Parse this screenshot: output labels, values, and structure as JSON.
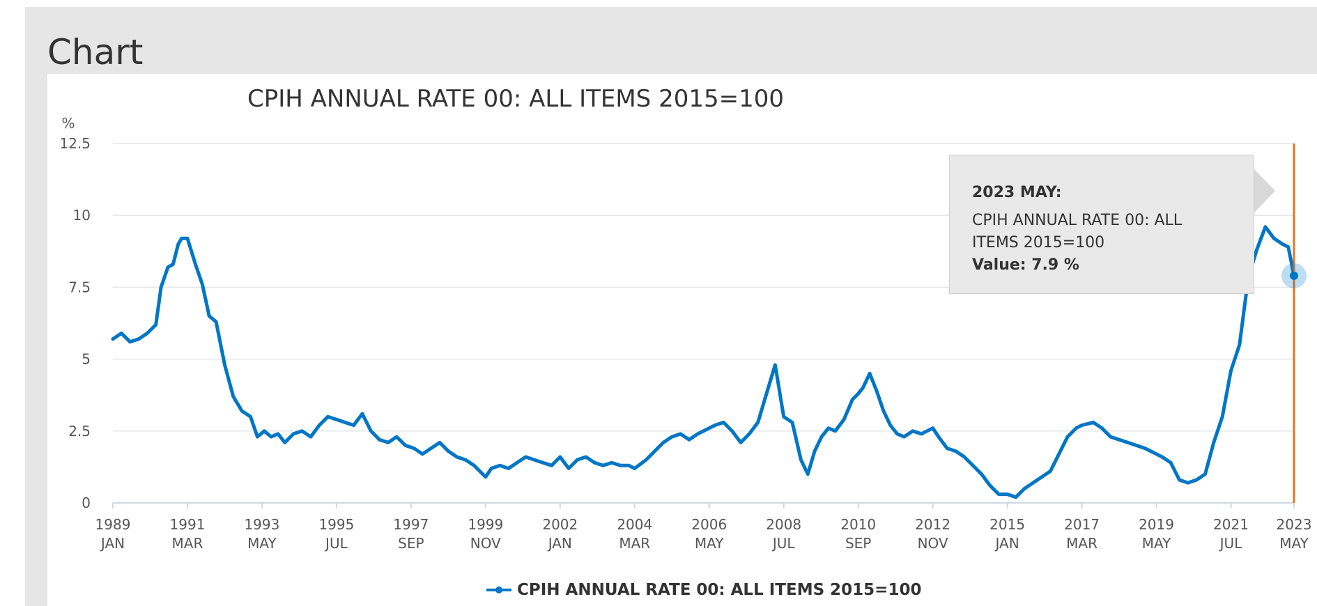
{
  "page": {
    "heading": "Chart"
  },
  "tooltip": {
    "date": "2023 MAY:",
    "series": "CPIH ANNUAL RATE 00: ALL ITEMS 2015=100",
    "value": "Value: 7.9 %"
  },
  "legend": {
    "label": "CPIH ANNUAL RATE 00: ALL ITEMS 2015=100"
  },
  "colors": {
    "series": "#0076c6",
    "highlight": "#e8731c",
    "grid": "#e3e6ea"
  },
  "chart_data": {
    "type": "line",
    "title": "CPIH ANNUAL RATE 00: ALL ITEMS 2015=100",
    "ylabel": "%",
    "xlabel": "",
    "ylim": [
      0,
      12.5
    ],
    "yticks": [
      "0",
      "2.5",
      "5",
      "7.5",
      "10",
      "12.5"
    ],
    "xlim": [
      1989.0,
      2023.333
    ],
    "xticks": [
      {
        "x": 1989.0,
        "year": "1989",
        "month": "JAN"
      },
      {
        "x": 1991.167,
        "year": "1991",
        "month": "MAR"
      },
      {
        "x": 1993.333,
        "year": "1993",
        "month": "MAY"
      },
      {
        "x": 1995.5,
        "year": "1995",
        "month": "JUL"
      },
      {
        "x": 1997.667,
        "year": "1997",
        "month": "SEP"
      },
      {
        "x": 1999.833,
        "year": "1999",
        "month": "NOV"
      },
      {
        "x": 2002.0,
        "year": "2002",
        "month": "JAN"
      },
      {
        "x": 2004.167,
        "year": "2004",
        "month": "MAR"
      },
      {
        "x": 2006.333,
        "year": "2006",
        "month": "MAY"
      },
      {
        "x": 2008.5,
        "year": "2008",
        "month": "JUL"
      },
      {
        "x": 2010.667,
        "year": "2010",
        "month": "SEP"
      },
      {
        "x": 2012.833,
        "year": "2012",
        "month": "NOV"
      },
      {
        "x": 2015.0,
        "year": "2015",
        "month": "JAN"
      },
      {
        "x": 2017.167,
        "year": "2017",
        "month": "MAR"
      },
      {
        "x": 2019.333,
        "year": "2019",
        "month": "MAY"
      },
      {
        "x": 2021.5,
        "year": "2021",
        "month": "JUL"
      },
      {
        "x": 2023.333,
        "year": "2023",
        "month": "MAY"
      }
    ],
    "grid": true,
    "legend_position": "bottom-center",
    "highlight_x": 2023.333,
    "series": [
      {
        "name": "CPIH ANNUAL RATE 00: ALL ITEMS 2015=100",
        "x": [
          1989.0,
          1989.25,
          1989.5,
          1989.75,
          1990.0,
          1990.25,
          1990.4,
          1990.6,
          1990.75,
          1990.9,
          1991.0,
          1991.167,
          1991.4,
          1991.6,
          1991.8,
          1992.0,
          1992.25,
          1992.5,
          1992.75,
          1993.0,
          1993.2,
          1993.4,
          1993.6,
          1993.8,
          1994.0,
          1994.25,
          1994.5,
          1994.75,
          1995.0,
          1995.25,
          1995.5,
          1995.75,
          1996.0,
          1996.25,
          1996.5,
          1996.75,
          1997.0,
          1997.25,
          1997.5,
          1997.75,
          1998.0,
          1998.25,
          1998.5,
          1998.75,
          1999.0,
          1999.25,
          1999.5,
          1999.833,
          2000.0,
          2000.25,
          2000.5,
          2000.75,
          2001.0,
          2001.25,
          2001.5,
          2001.75,
          2002.0,
          2002.25,
          2002.5,
          2002.75,
          2003.0,
          2003.25,
          2003.5,
          2003.75,
          2004.0,
          2004.167,
          2004.5,
          2004.75,
          2005.0,
          2005.25,
          2005.5,
          2005.75,
          2006.0,
          2006.333,
          2006.5,
          2006.75,
          2007.0,
          2007.25,
          2007.5,
          2007.75,
          2008.0,
          2008.25,
          2008.5,
          2008.75,
          2009.0,
          2009.2,
          2009.4,
          2009.6,
          2009.8,
          2010.0,
          2010.25,
          2010.5,
          2010.667,
          2010.8,
          2011.0,
          2011.2,
          2011.4,
          2011.6,
          2011.8,
          2012.0,
          2012.25,
          2012.5,
          2012.833,
          2013.0,
          2013.25,
          2013.5,
          2013.75,
          2014.0,
          2014.25,
          2014.5,
          2014.75,
          2015.0,
          2015.25,
          2015.5,
          2015.75,
          2016.0,
          2016.25,
          2016.5,
          2016.75,
          2017.0,
          2017.167,
          2017.5,
          2017.75,
          2018.0,
          2018.25,
          2018.5,
          2018.75,
          2019.0,
          2019.333,
          2019.5,
          2019.75,
          2020.0,
          2020.25,
          2020.5,
          2020.75,
          2021.0,
          2021.25,
          2021.5,
          2021.75,
          2022.0,
          2022.25,
          2022.5,
          2022.75,
          2023.0,
          2023.167,
          2023.333
        ],
        "values": [
          5.7,
          5.9,
          5.6,
          5.7,
          5.9,
          6.2,
          7.5,
          8.2,
          8.3,
          9.0,
          9.2,
          9.2,
          8.3,
          7.6,
          6.5,
          6.3,
          4.8,
          3.7,
          3.2,
          3.0,
          2.3,
          2.5,
          2.3,
          2.4,
          2.1,
          2.4,
          2.5,
          2.3,
          2.7,
          3.0,
          2.9,
          2.8,
          2.7,
          3.1,
          2.5,
          2.2,
          2.1,
          2.3,
          2.0,
          1.9,
          1.7,
          1.9,
          2.1,
          1.8,
          1.6,
          1.5,
          1.3,
          0.9,
          1.2,
          1.3,
          1.2,
          1.4,
          1.6,
          1.5,
          1.4,
          1.3,
          1.6,
          1.2,
          1.5,
          1.6,
          1.4,
          1.3,
          1.4,
          1.3,
          1.3,
          1.2,
          1.5,
          1.8,
          2.1,
          2.3,
          2.4,
          2.2,
          2.4,
          2.6,
          2.7,
          2.8,
          2.5,
          2.1,
          2.4,
          2.8,
          3.8,
          4.8,
          3.0,
          2.8,
          1.5,
          1.0,
          1.8,
          2.3,
          2.6,
          2.5,
          2.9,
          3.6,
          3.8,
          4.0,
          4.5,
          3.9,
          3.2,
          2.7,
          2.4,
          2.3,
          2.5,
          2.4,
          2.6,
          2.3,
          1.9,
          1.8,
          1.6,
          1.3,
          1.0,
          0.6,
          0.3,
          0.3,
          0.2,
          0.5,
          0.7,
          0.9,
          1.1,
          1.7,
          2.3,
          2.6,
          2.7,
          2.8,
          2.6,
          2.3,
          2.2,
          2.1,
          2.0,
          1.9,
          1.7,
          1.6,
          1.4,
          0.8,
          0.7,
          0.8,
          1.0,
          2.1,
          3.0,
          4.6,
          5.5,
          7.8,
          8.8,
          9.6,
          9.2,
          9.0,
          8.9,
          7.9
        ]
      }
    ]
  }
}
